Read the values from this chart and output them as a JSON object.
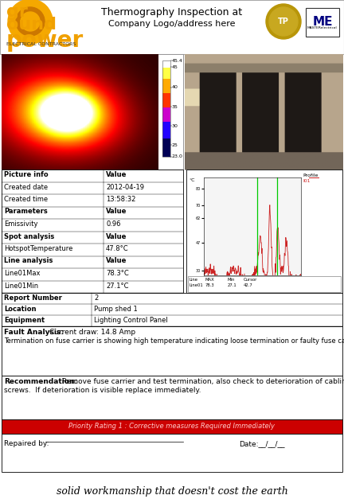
{
  "title_text": "Thermography Inspection at",
  "subtitle_text": "Company Logo/address here",
  "bg_color": "#ffffff",
  "table1_rows": [
    [
      "Picture info",
      "Value"
    ],
    [
      "Created date",
      "2012-04-19"
    ],
    [
      "Created time",
      "13:58:32"
    ],
    [
      "Parameters",
      "Value"
    ],
    [
      "Emissivity",
      "0.96"
    ],
    [
      "Spot analysis",
      "Value"
    ],
    [
      "HotspotTemperature",
      "47.8°C"
    ],
    [
      "Line analysis",
      "Value"
    ],
    [
      "Line01Max",
      "78.3°C"
    ],
    [
      "Line01Min",
      "27.1°C"
    ]
  ],
  "table2_rows": [
    [
      "Report Number",
      "2"
    ],
    [
      "Location",
      "Pump shed 1"
    ],
    [
      "Equipment",
      "Lighting Control Panel"
    ]
  ],
  "bold_rows_table1": [
    0,
    3,
    5,
    7
  ],
  "fault_analysis_label": "Fault Analysis:",
  "fault_analysis_value": "        Current draw: 14.8 Amp",
  "fault_analysis_body": "Termination on fuse carrier is showing high temperature indicating loose termination or faulty fuse carrier.",
  "recommendation_label": "Recommendation:",
  "recommendation_body": " Remove fuse carrier and test termination, also check to deterioration of cabling and\nscrews.  If deterioration is visible replace immediately.",
  "priority_text": "Priority Rating 1 : Corrective measures Required Immediately",
  "priority_bg": "#cc0000",
  "priority_text_color": "#ffcccc",
  "repaired_by_label": "Repaired by: ",
  "date_label": "Date:",
  "footer_text": "solid workmanship that doesn't cost the earth",
  "colorbar_labels": [
    [
      "45.4",
      1.0
    ],
    [
      "45",
      0.93
    ],
    [
      "40",
      0.72
    ],
    [
      "35",
      0.52
    ],
    [
      "30",
      0.32
    ],
    [
      "25",
      0.12
    ],
    [
      "23.0",
      0.0
    ]
  ],
  "graph_yticks": [
    30,
    47,
    62,
    70,
    80
  ],
  "graph_ytick_labels": [
    "30",
    "47",
    "62",
    "70",
    "80"
  ],
  "graph_bottom_headers": [
    "Line",
    "MAX",
    "Min",
    "Cursor"
  ],
  "graph_bottom_vals": [
    "Line01",
    "78.3",
    "27.1",
    "42.7"
  ]
}
